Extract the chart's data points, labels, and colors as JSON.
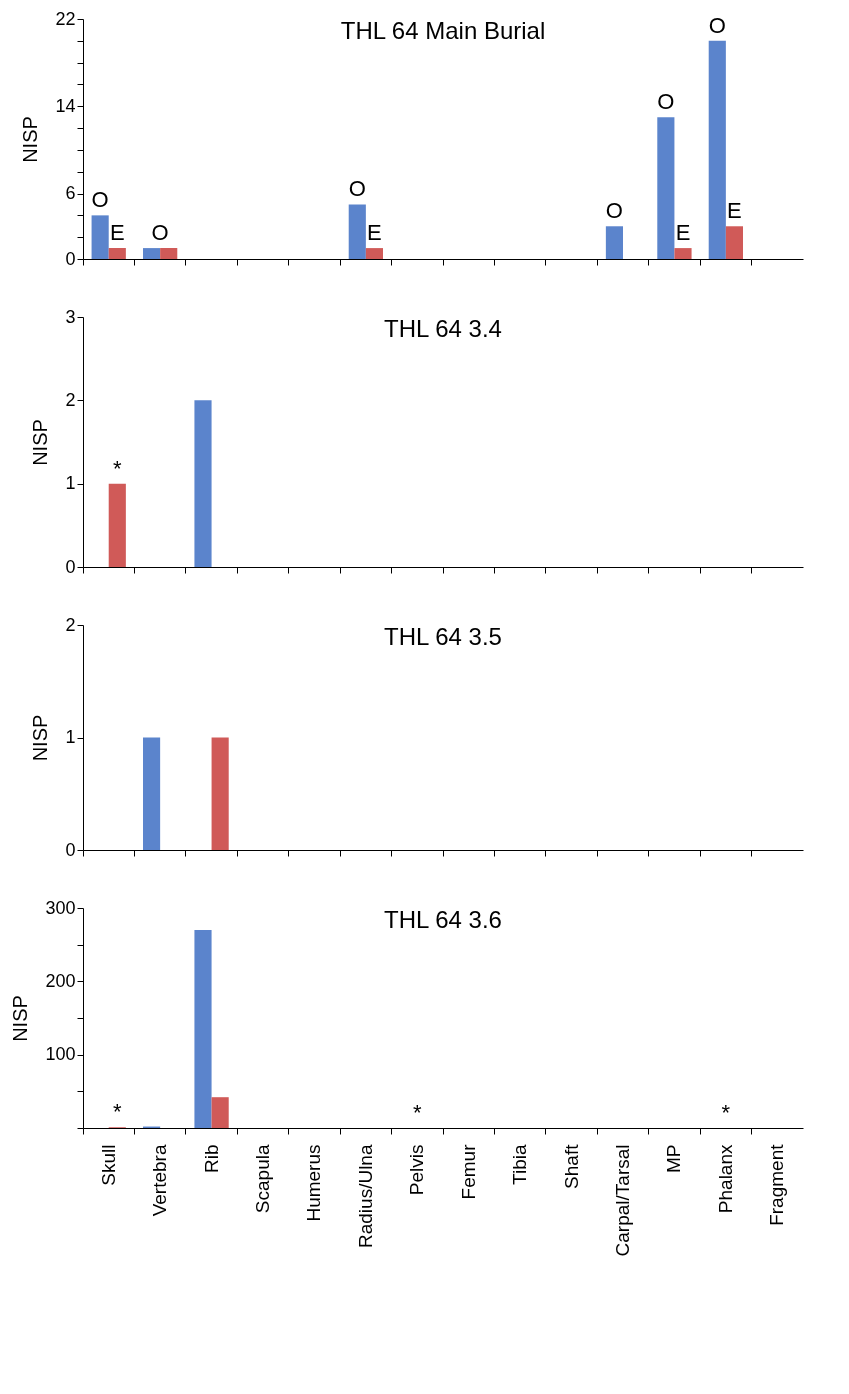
{
  "chart_data": [
    {
      "type": "bar",
      "title": "THL 64 Main Burial",
      "ylabel": "NISP",
      "categories": [
        "Skull",
        "Vertebra",
        "Rib",
        "Scapula",
        "Humerus",
        "Radius/Ulna",
        "Pelvis",
        "Femur",
        "Tibia",
        "Shaft",
        "Carpal/Tarsal",
        "MP",
        "Phalanx",
        "Fragment"
      ],
      "series": [
        {
          "color": "#5b84cc",
          "values": [
            4,
            1,
            0,
            0,
            0,
            5,
            0,
            0,
            0,
            0,
            3,
            13,
            20,
            0
          ]
        },
        {
          "color": "#d05a58",
          "values": [
            1,
            1,
            0,
            0,
            0,
            1,
            0,
            0,
            0,
            0,
            0,
            1,
            3,
            0
          ]
        }
      ],
      "ylim": [
        0,
        22
      ],
      "yticks": [
        0,
        {
          "value": 2,
          "label": null
        },
        {
          "value": 4,
          "label": null
        },
        6,
        {
          "value": 8,
          "label": null
        },
        {
          "value": 10,
          "label": null
        },
        {
          "value": 12,
          "label": null
        },
        14,
        {
          "value": 16,
          "label": null
        },
        {
          "value": 18,
          "label": null
        },
        {
          "value": 20,
          "label": null
        },
        22
      ],
      "annotations": [
        {
          "text": "O",
          "x": "Skull",
          "y": 4
        },
        {
          "text": "E",
          "x": "Skull",
          "y": 1
        },
        {
          "text": "O",
          "x": "Vertebra",
          "y": 1
        },
        {
          "text": "O",
          "x": "Radius/Ulna",
          "y": 5
        },
        {
          "text": "E",
          "x": "Radius/Ulna",
          "y": 1
        },
        {
          "text": "O",
          "x": "Carpal/Tarsal",
          "y": 3
        },
        {
          "text": "O",
          "x": "MP",
          "y": 13
        },
        {
          "text": "E",
          "x": "MP",
          "y": 1
        },
        {
          "text": "O",
          "x": "Phalanx",
          "y": 20
        },
        {
          "text": "E",
          "x": "Phalanx",
          "y": 3
        }
      ],
      "tick_labels": "y",
      "grid": false,
      "legend": false
    },
    {
      "type": "bar",
      "title": "THL 64 3.4",
      "ylabel": "NISP",
      "categories": [
        "Skull",
        "Vertebra",
        "Rib",
        "Scapula",
        "Humerus",
        "Radius/Ulna",
        "Pelvis",
        "Femur",
        "Tibia",
        "Shaft",
        "Carpal/Tarsal",
        "MP",
        "Phalanx",
        "Fragment"
      ],
      "series": [
        {
          "color": "#5b84cc",
          "values": [
            0,
            0,
            2,
            0,
            0,
            0,
            0,
            0,
            0,
            0,
            0,
            0,
            0,
            0
          ]
        },
        {
          "color": "#d05a58",
          "values": [
            1,
            0,
            0,
            0,
            0,
            0,
            0,
            0,
            0,
            0,
            0,
            0,
            0,
            0
          ]
        }
      ],
      "ylim": [
        0,
        3
      ],
      "yticks": [
        0,
        1,
        2,
        3
      ],
      "annotations": [
        {
          "text": "*",
          "x": "Skull",
          "y": 1
        }
      ],
      "tick_labels": "y",
      "grid": false,
      "legend": false
    },
    {
      "type": "bar",
      "title": "THL 64 3.5",
      "ylabel": "NISP",
      "categories": [
        "Skull",
        "Vertebra",
        "Rib",
        "Scapula",
        "Humerus",
        "Radius/Ulna",
        "Pelvis",
        "Femur",
        "Tibia",
        "Shaft",
        "Carpal/Tarsal",
        "MP",
        "Phalanx",
        "Fragment"
      ],
      "series": [
        {
          "color": "#5b84cc",
          "values": [
            0,
            1,
            0,
            0,
            0,
            0,
            0,
            0,
            0,
            0,
            0,
            0,
            0,
            0
          ]
        },
        {
          "color": "#d05a58",
          "values": [
            0,
            0,
            1,
            0,
            0,
            0,
            0,
            0,
            0,
            0,
            0,
            0,
            0,
            0
          ]
        }
      ],
      "ylim": [
        0,
        2
      ],
      "yticks": [
        0,
        1,
        2
      ],
      "tick_labels": "y",
      "grid": false,
      "legend": false
    },
    {
      "type": "bar",
      "title": "THL 64 3.6",
      "ylabel": "NISP",
      "categories": [
        "Skull",
        "Vertebra",
        "Rib",
        "Scapula",
        "Humerus",
        "Radius/Ulna",
        "Pelvis",
        "Femur",
        "Tibia",
        "Shaft",
        "Carpal/Tarsal",
        "MP",
        "Phalanx",
        "Fragment"
      ],
      "series": [
        {
          "color": "#5b84cc",
          "values": [
            0,
            2,
            270,
            0,
            0,
            0,
            0,
            0,
            0,
            0,
            0,
            0,
            0,
            0
          ]
        },
        {
          "color": "#d05a58",
          "values": [
            1,
            0,
            42,
            0,
            0,
            0,
            0,
            0,
            0,
            0,
            0,
            0,
            0,
            0
          ]
        }
      ],
      "ylim": [
        0,
        300
      ],
      "yticks": [
        {
          "value": 0,
          "label": null
        },
        {
          "value": 50,
          "label": null
        },
        100,
        {
          "value": 150,
          "label": null
        },
        200,
        {
          "value": 250,
          "label": null
        },
        300
      ],
      "annotations": [
        {
          "text": "*",
          "x": "Skull",
          "y": 1
        },
        {
          "text": "*",
          "x": "Pelvis",
          "y": 0
        },
        {
          "text": "*",
          "x": "Phalanx",
          "y": 0
        }
      ],
      "grid": false,
      "legend": false
    }
  ]
}
